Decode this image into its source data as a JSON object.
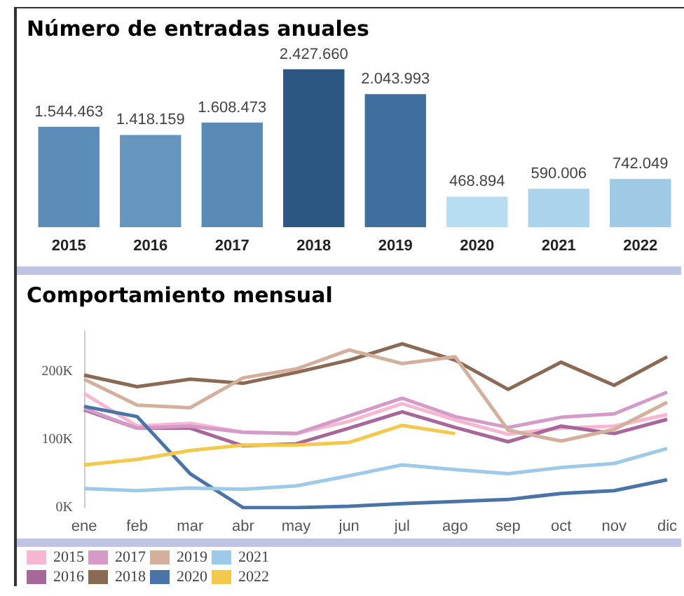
{
  "chart_data": [
    {
      "type": "bar",
      "title": "Número de entradas anuales",
      "categories": [
        "2015",
        "2016",
        "2017",
        "2018",
        "2019",
        "2020",
        "2021",
        "2022"
      ],
      "values": [
        1544463,
        1418159,
        1608473,
        2427660,
        2043993,
        468894,
        590006,
        742049
      ],
      "value_labels": [
        "1.544.463",
        "1.418.159",
        "1.608.473",
        "2.427.660",
        "2.043.993",
        "468.894",
        "590.006",
        "742.049"
      ],
      "colors": [
        "#5b8db8",
        "#6496c0",
        "#5a8ab6",
        "#2c5782",
        "#406e9e",
        "#b8dcf0",
        "#acd3ec",
        "#9ecae6"
      ],
      "tick_labels": "x"
    },
    {
      "type": "line",
      "title": "Comportamiento mensual",
      "categories": [
        "ene",
        "feb",
        "mar",
        "abr",
        "may",
        "jun",
        "jul",
        "ago",
        "sep",
        "oct",
        "nov",
        "dic"
      ],
      "ylim": [
        0,
        260000
      ],
      "yticks": [
        {
          "value": 0,
          "label": "0K"
        },
        {
          "value": 100000,
          "label": "100K"
        },
        {
          "value": 200000,
          "label": "200K"
        }
      ],
      "legend": "bottom left",
      "marker": "none",
      "series": [
        {
          "name": "2015",
          "color": "#f7b6d2",
          "values": [
            168000,
            120000,
            124000,
            111000,
            109000,
            127000,
            153000,
            129000,
            108000,
            117000,
            120000,
            137000
          ]
        },
        {
          "name": "2016",
          "color": "#a8679a",
          "values": [
            144000,
            117000,
            117000,
            91000,
            94000,
            117000,
            141000,
            118000,
            97000,
            120000,
            109000,
            130000
          ]
        },
        {
          "name": "2017",
          "color": "#d49ac8",
          "values": [
            146000,
            117000,
            120000,
            111000,
            109000,
            135000,
            161000,
            134000,
            118000,
            133000,
            138000,
            170000
          ]
        },
        {
          "name": "2018",
          "color": "#8b6a55",
          "values": [
            195000,
            178000,
            189000,
            183000,
            199000,
            217000,
            241000,
            217000,
            174000,
            214000,
            180000,
            222000
          ]
        },
        {
          "name": "2019",
          "color": "#d4b09c",
          "values": [
            189000,
            151000,
            147000,
            191000,
            204000,
            232000,
            212000,
            222000,
            114000,
            98000,
            115000,
            155000
          ]
        },
        {
          "name": "2020",
          "color": "#4a74a8",
          "values": [
            149000,
            134000,
            50000,
            0,
            0,
            2000,
            6000,
            9000,
            12000,
            21000,
            25000,
            41000
          ]
        },
        {
          "name": "2021",
          "color": "#9ecae9",
          "values": [
            28000,
            25000,
            29000,
            27000,
            32000,
            47000,
            63000,
            56000,
            50000,
            59000,
            65000,
            87000
          ]
        },
        {
          "name": "2022",
          "color": "#f2c94c",
          "values": [
            63000,
            71000,
            84000,
            92000,
            92000,
            96000,
            121000,
            109000,
            null,
            null,
            null,
            null
          ]
        }
      ]
    }
  ]
}
